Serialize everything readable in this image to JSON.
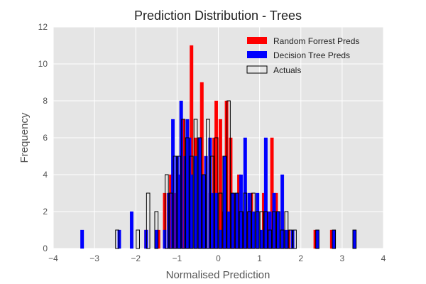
{
  "chart_data": {
    "type": "bar",
    "title": "Prediction Distribution - Trees",
    "xlabel": "Normalised Prediction",
    "ylabel": "Frequency",
    "xlim": [
      -4,
      4
    ],
    "ylim": [
      0,
      12
    ],
    "xticks": [
      -4,
      -3,
      -2,
      -1,
      0,
      1,
      2,
      3,
      4
    ],
    "yticks": [
      0,
      2,
      4,
      6,
      8,
      10,
      12
    ],
    "grid": true,
    "legend_position": "top-right",
    "bin_width": 0.08,
    "series": [
      {
        "name": "Random Forrest Preds",
        "style": "filled",
        "color": "#ff0000",
        "x": [
          -1.75,
          -1.45,
          -1.3,
          -1.15,
          -1.05,
          -0.95,
          -0.85,
          -0.75,
          -0.65,
          -0.55,
          -0.45,
          -0.4,
          -0.3,
          -0.2,
          -0.1,
          -0.05,
          0.05,
          0.1,
          0.2,
          0.3,
          0.4,
          0.5,
          0.6,
          0.7,
          0.8,
          0.95,
          1.1,
          1.2,
          1.3,
          1.4,
          1.55,
          1.7,
          2.35,
          2.75
        ],
        "values": [
          1,
          1,
          3,
          4,
          3,
          2,
          7,
          5,
          11,
          6,
          4,
          9,
          5,
          3,
          6,
          8,
          7,
          2,
          8,
          6,
          3,
          4,
          2,
          2,
          3,
          2,
          3,
          2,
          6,
          3,
          2,
          1,
          1,
          1
        ]
      },
      {
        "name": "Decision Tree Preds",
        "style": "filled",
        "color": "#0000ff",
        "x": [
          -3.3,
          -2.4,
          -2.1,
          -1.75,
          -1.5,
          -1.3,
          -1.2,
          -1.1,
          -1.0,
          -0.95,
          -0.9,
          -0.8,
          -0.75,
          -0.7,
          -0.65,
          -0.55,
          -0.45,
          -0.35,
          -0.3,
          -0.2,
          -0.15,
          -0.05,
          0.05,
          0.15,
          0.25,
          0.35,
          0.45,
          0.55,
          0.65,
          0.75,
          0.85,
          0.95,
          1.05,
          1.15,
          1.25,
          1.35,
          1.45,
          1.55,
          1.65,
          1.8,
          2.4,
          2.8,
          3.3
        ],
        "values": [
          1,
          1,
          2,
          1,
          1,
          1,
          3,
          7,
          5,
          4,
          8,
          5,
          7,
          6,
          4,
          5,
          6,
          4,
          5,
          6,
          3,
          3,
          1,
          5,
          2,
          3,
          3,
          4,
          6,
          3,
          2,
          3,
          1,
          6,
          2,
          3,
          2,
          4,
          1,
          1,
          1,
          1,
          1
        ]
      },
      {
        "name": "Actuals",
        "style": "outline",
        "color": "#000000",
        "x": [
          -2.45,
          -1.95,
          -1.7,
          -1.5,
          -1.25,
          -1.15,
          -1.05,
          -0.95,
          -0.85,
          -0.75,
          -0.65,
          -0.55,
          -0.45,
          -0.35,
          -0.25,
          -0.15,
          -0.05,
          0.05,
          0.15,
          0.25,
          0.35,
          0.45,
          0.55,
          0.65,
          0.75,
          0.85,
          0.95,
          1.05,
          1.15,
          1.25,
          1.35,
          1.45,
          1.55,
          1.65,
          1.75,
          1.85,
          2.4,
          2.8,
          3.3
        ],
        "values": [
          1,
          1,
          3,
          2,
          4,
          3,
          5,
          5,
          7,
          6,
          5,
          7,
          6,
          4,
          7,
          5,
          6,
          3,
          5,
          8,
          3,
          3,
          2,
          3,
          2,
          3,
          2,
          2,
          2,
          1,
          2,
          2,
          1,
          2,
          1,
          1,
          1,
          1,
          1
        ]
      }
    ]
  }
}
